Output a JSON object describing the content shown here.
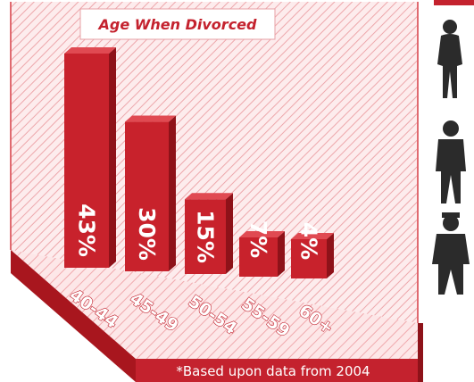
{
  "chart_data": {
    "type": "bar",
    "title": "Age When Divorced",
    "categories": [
      "40-44",
      "45-49",
      "50-54",
      "55-59",
      "60+"
    ],
    "values": [
      43,
      30,
      15,
      7,
      4
    ],
    "value_labels": [
      "43%",
      "30%",
      "15%",
      "7%",
      "4%"
    ],
    "value_unit": "%",
    "ylim": [
      0,
      43
    ],
    "footnote": "*Based upon data from 2004"
  },
  "colors": {
    "bar_front": "#c8222c",
    "bar_side": "#8e1219",
    "bar_top": "#e04a52",
    "accent": "#c4222e",
    "background_hatch": "#f3b8bb"
  },
  "icons": [
    "woman-silhouette-icon",
    "man-silhouette-icon",
    "elderly-man-silhouette-icon"
  ]
}
